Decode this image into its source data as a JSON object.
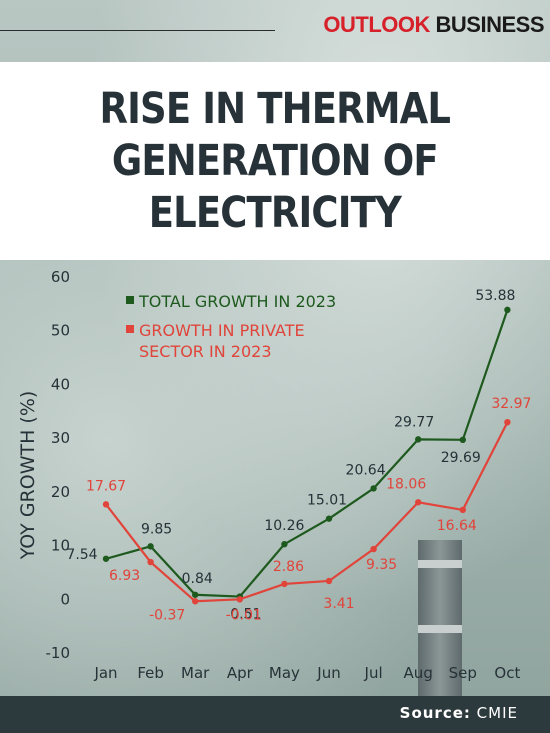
{
  "brand": {
    "part1": "OUTLOOK",
    "part2": "BUSINESS"
  },
  "title_lines": [
    "RISE IN THERMAL",
    "GENERATION OF",
    "ELECTRICITY"
  ],
  "source": {
    "label": "Source:",
    "value": "CMIE"
  },
  "colors": {
    "total": "#1e5a1e",
    "private": "#e0443a",
    "text": "#263238",
    "footer": "#2d3a3d"
  },
  "chart_data": {
    "type": "line",
    "categories": [
      "Jan",
      "Feb",
      "Mar",
      "Apr",
      "May",
      "Jun",
      "Jul",
      "Aug",
      "Sep",
      "Oct"
    ],
    "series": [
      {
        "name": "TOTAL GROWTH IN 2023",
        "values": [
          7.54,
          9.85,
          0.84,
          0.51,
          10.26,
          15.01,
          20.64,
          29.77,
          29.69,
          53.88
        ],
        "labels": [
          "7.54",
          "9.85",
          "0.84",
          "0.51",
          "10.26",
          "15.01",
          "20.64",
          "29.77",
          "29.69",
          "53.88"
        ]
      },
      {
        "name": "GROWTH IN PRIVATE SECTOR IN 2023",
        "name_lines": [
          "GROWTH IN PRIVATE",
          "SECTOR IN 2023"
        ],
        "values": [
          17.67,
          6.93,
          -0.37,
          -0.01,
          2.86,
          3.41,
          9.35,
          18.06,
          16.64,
          32.97
        ],
        "labels": [
          "17.67",
          "6.93",
          "-0.37",
          "-0.01",
          "2.86",
          "3.41",
          "9.35",
          "18.06",
          "16.64",
          "32.97"
        ]
      }
    ],
    "ylabel": "YOY GROWTH (%)",
    "ylim": [
      -10,
      60
    ],
    "yticks": [
      "60",
      "50",
      "40",
      "30",
      "20",
      "10",
      "0",
      "-10"
    ],
    "ytick_values": [
      60,
      50,
      40,
      30,
      20,
      10,
      0,
      -10
    ],
    "grid": false,
    "legend": "top-left"
  }
}
